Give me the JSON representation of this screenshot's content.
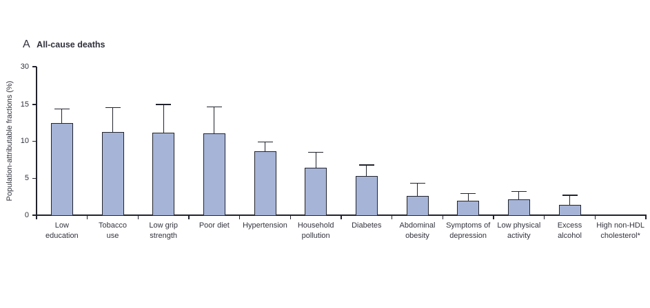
{
  "figure": {
    "panel_letter": "A",
    "title": "All-cause deaths"
  },
  "chart_data": {
    "type": "bar",
    "panel": "A",
    "title": "All-cause deaths",
    "ylabel": "Population-attributable fractions (%)",
    "xlabel": "",
    "ylim": [
      0,
      30
    ],
    "y_ticks": [
      0,
      5,
      10,
      15,
      30
    ],
    "y_axis_note": "scale compressed above 15: segment 15-30 occupies the same height as 5 units",
    "grid": false,
    "legend": null,
    "error_bars": "upper confidence-interval whiskers only",
    "categories": [
      "Low education",
      "Tobacco use",
      "Low grip strength",
      "Poor diet",
      "Hypertension",
      "Household pollution",
      "Diabetes",
      "Abdominal obesity",
      "Symptoms of depression",
      "Low physical activity",
      "Excess alcohol",
      "High non-HDL cholesterol*"
    ],
    "category_label_lines": [
      [
        "Low",
        "education"
      ],
      [
        "Tobacco",
        "use"
      ],
      [
        "Low grip",
        "strength"
      ],
      [
        "Poor diet"
      ],
      [
        "Hypertension"
      ],
      [
        "Household",
        "pollution"
      ],
      [
        "Diabetes"
      ],
      [
        "Abdominal",
        "obesity"
      ],
      [
        "Symptoms of",
        "depression"
      ],
      [
        "Low physical",
        "activity"
      ],
      [
        "Excess",
        "alcohol"
      ],
      [
        "High non-HDL",
        "cholesterol*"
      ]
    ],
    "values": [
      12.5,
      11.3,
      11.2,
      11.1,
      8.7,
      6.4,
      5.3,
      2.6,
      2.0,
      2.1,
      1.4,
      0
    ],
    "upper_ci": [
      14.4,
      14.6,
      15.0,
      14.7,
      9.9,
      8.5,
      6.8,
      4.3,
      2.9,
      3.2,
      2.7,
      null
    ],
    "colors": {
      "bar_fill": "#a6b4d8",
      "bar_border": "#20222b",
      "axis": "#20222b",
      "text": "#32333d",
      "background": "#ffffff"
    }
  }
}
